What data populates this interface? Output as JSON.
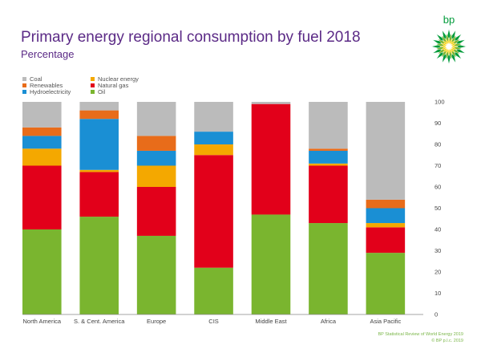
{
  "title": "Primary energy regional consumption by fuel 2018",
  "subtitle": "Percentage",
  "logo": {
    "text": "bp",
    "color": "#009b3a"
  },
  "source": {
    "line1": "BP Statistical Review of World Energy 2019",
    "line2": "© BP p.l.c. 2019"
  },
  "chart_data": {
    "type": "bar",
    "stacked": true,
    "title": "Primary energy regional consumption by fuel 2018",
    "subtitle": "Percentage",
    "xlabel": "",
    "ylabel": "",
    "ylim": [
      0,
      100
    ],
    "yticks": [
      0,
      10,
      20,
      30,
      40,
      50,
      60,
      70,
      80,
      90,
      100
    ],
    "y_axis_position": "right",
    "grid": false,
    "legend_position": "top-left",
    "categories": [
      "North America",
      "S. & Cent. America",
      "Europe",
      "CIS",
      "Middle East",
      "Africa",
      "Asia Pacific"
    ],
    "series": [
      {
        "name": "Oil",
        "color": "#7ab52f",
        "values": [
          40,
          46,
          37,
          22,
          47,
          43,
          29
        ]
      },
      {
        "name": "Natural gas",
        "color": "#e2001a",
        "values": [
          30,
          21,
          23,
          53,
          52,
          27,
          12
        ]
      },
      {
        "name": "Nuclear energy",
        "color": "#f4a800",
        "values": [
          8,
          1,
          10,
          5,
          0,
          1,
          2
        ]
      },
      {
        "name": "Hydroelectricity",
        "color": "#1a8fd4",
        "values": [
          6,
          24,
          7,
          6,
          0,
          6,
          7
        ]
      },
      {
        "name": "Renewables",
        "color": "#e86c1a",
        "values": [
          4,
          4,
          7,
          0,
          0,
          1,
          4
        ]
      },
      {
        "name": "Coal",
        "color": "#bbbbbb",
        "values": [
          12,
          4,
          16,
          14,
          1,
          22,
          46
        ]
      }
    ],
    "legend_order": [
      "Coal",
      "Renewables",
      "Hydroelectricity",
      "Nuclear energy",
      "Natural gas",
      "Oil"
    ]
  }
}
